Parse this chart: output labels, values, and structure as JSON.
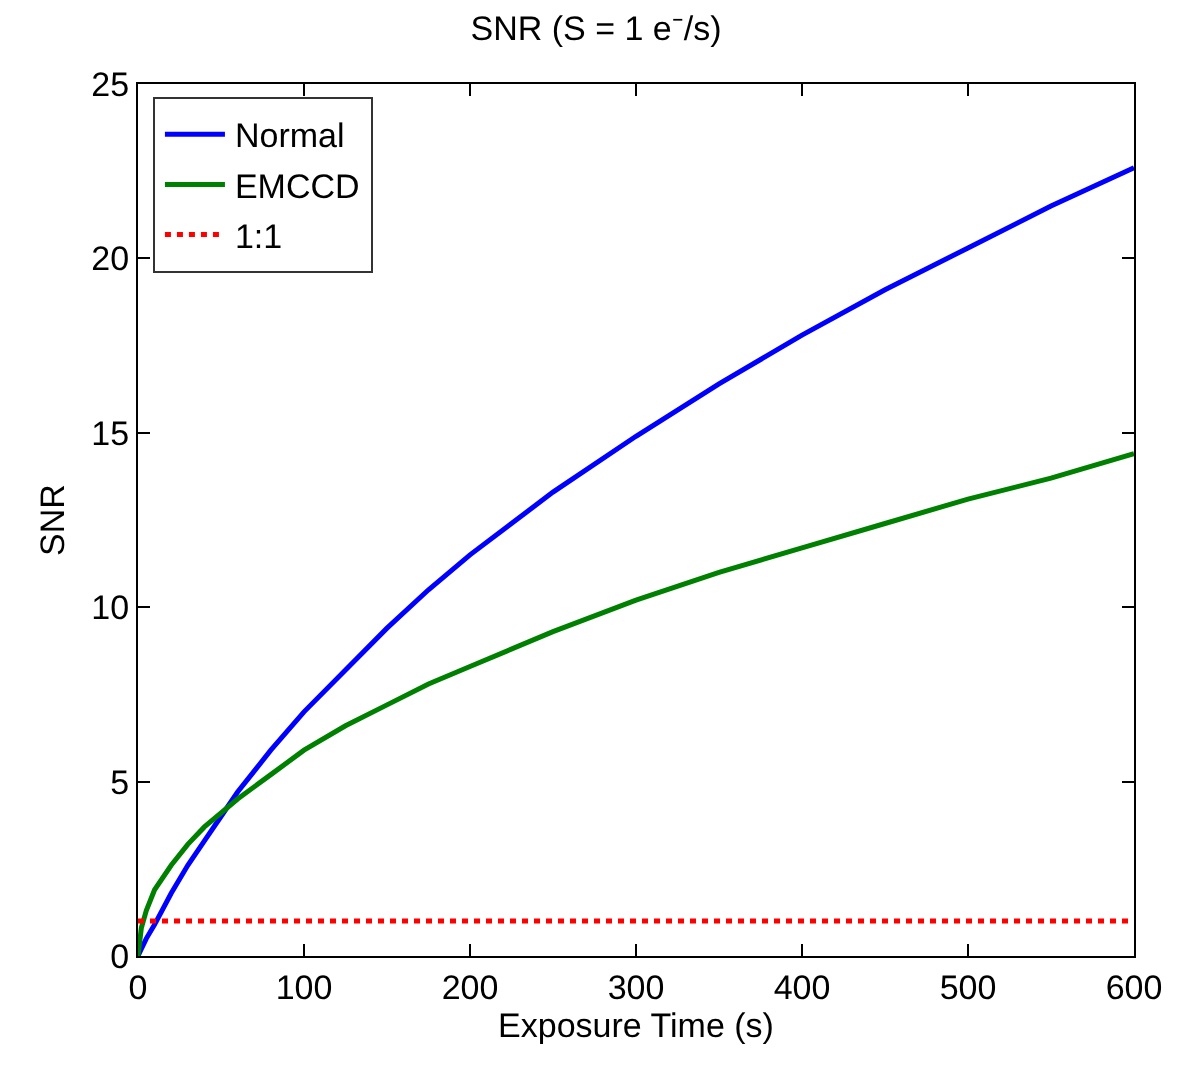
{
  "chart_data": {
    "type": "line",
    "title": "SNR (S = 1 e⁻/s)",
    "xlabel": "Exposure Time (s)",
    "ylabel": "SNR",
    "x": [
      0,
      2,
      5,
      10,
      20,
      30,
      40,
      50,
      60,
      80,
      100,
      125,
      150,
      175,
      200,
      250,
      300,
      350,
      400,
      450,
      500,
      550,
      600
    ],
    "series": [
      {
        "name": "Normal",
        "color": "#0000ff",
        "line_style": "solid",
        "values": [
          0,
          0.2,
          0.5,
          0.9,
          1.8,
          2.6,
          3.3,
          4.0,
          4.7,
          5.9,
          7.0,
          8.2,
          9.4,
          10.5,
          11.5,
          13.3,
          14.9,
          16.4,
          17.8,
          19.1,
          20.3,
          21.5,
          22.6
        ]
      },
      {
        "name": "EMCCD",
        "color": "#008000",
        "line_style": "solid",
        "values": [
          0,
          0.8,
          1.3,
          1.9,
          2.6,
          3.2,
          3.7,
          4.1,
          4.5,
          5.2,
          5.9,
          6.6,
          7.2,
          7.8,
          8.3,
          9.3,
          10.2,
          11.0,
          11.7,
          12.4,
          13.1,
          13.7,
          14.4
        ]
      },
      {
        "name": "1:1",
        "color": "#ff0000",
        "line_style": "dotted",
        "x": [
          0,
          600
        ],
        "values": [
          1,
          1
        ]
      }
    ],
    "xlim": [
      0,
      600
    ],
    "xticks": [
      0,
      100,
      200,
      300,
      400,
      500,
      600
    ],
    "ylim": [
      0,
      25
    ],
    "yticks": [
      0,
      5,
      10,
      15,
      20,
      25
    ],
    "grid": false,
    "legend": "top left"
  }
}
